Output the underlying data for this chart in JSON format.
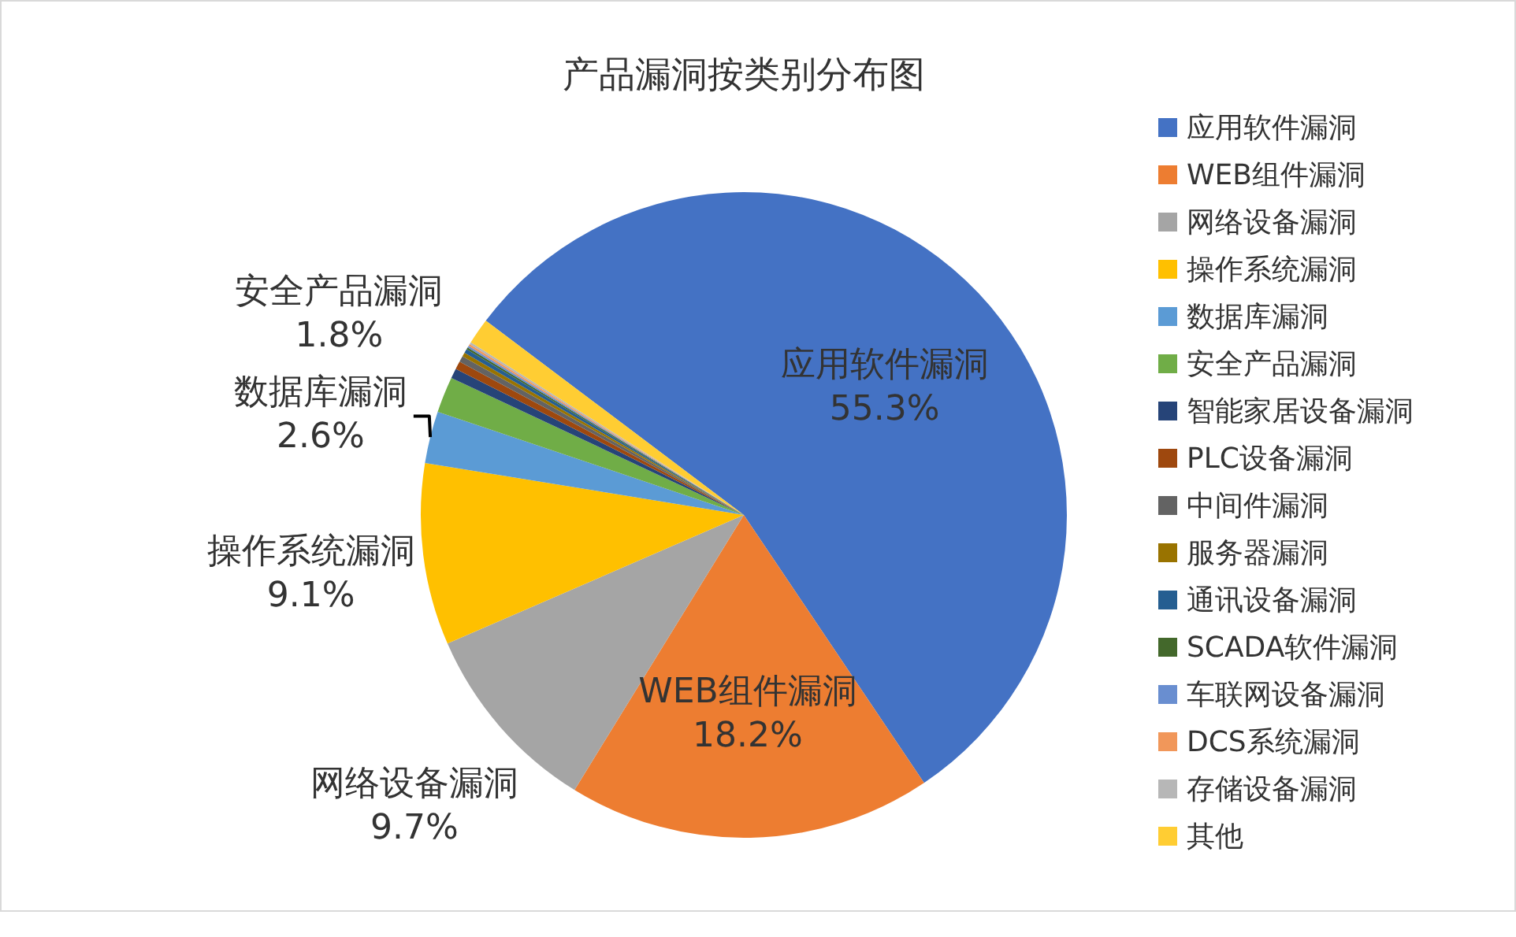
{
  "chart_data": {
    "type": "pie",
    "title": "产品漏洞按类别分布图",
    "legend": "right",
    "categories": [
      "应用软件漏洞",
      "WEB组件漏洞",
      "网络设备漏洞",
      "操作系统漏洞",
      "数据库漏洞",
      "安全产品漏洞",
      "智能家居设备漏洞",
      "PLC设备漏洞",
      "中间件漏洞",
      "服务器漏洞",
      "通讯设备漏洞",
      "SCADA软件漏洞",
      "车联网设备漏洞",
      "DCS系统漏洞",
      "存储设备漏洞",
      "其他"
    ],
    "values": [
      55.3,
      18.2,
      9.7,
      9.1,
      2.6,
      1.8,
      0.5,
      0.4,
      0.3,
      0.2,
      0.2,
      0.1,
      0.1,
      0.1,
      0.1,
      1.3
    ],
    "value_labels": [
      "55.3%",
      "18.2%",
      "9.7%",
      "9.1%",
      "2.6%",
      "1.8%",
      null,
      null,
      null,
      null,
      null,
      null,
      null,
      null,
      null,
      null
    ],
    "colors": [
      "#4472c4",
      "#ed7d31",
      "#a5a5a5",
      "#ffc000",
      "#5b9bd5",
      "#70ad47",
      "#264478",
      "#9e480e",
      "#636363",
      "#997300",
      "#255e91",
      "#43682b",
      "#698ed0",
      "#f1975a",
      "#b7b7b7",
      "#ffcd33"
    ]
  }
}
